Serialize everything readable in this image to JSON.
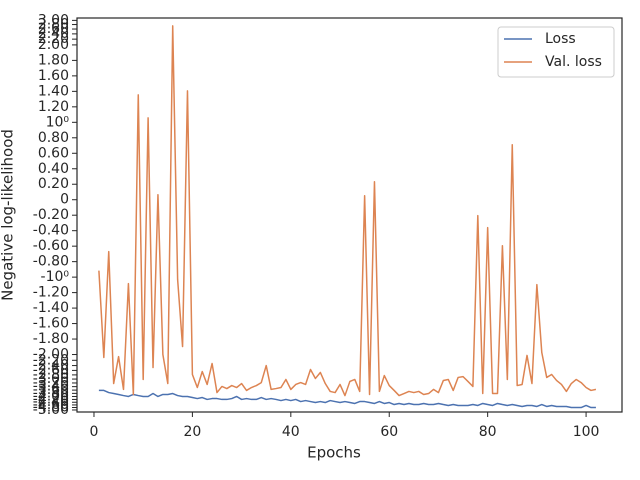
{
  "chart_data": {
    "type": "line",
    "xlabel": "Epochs",
    "ylabel": "Negative log-likelihood",
    "yscale": "symlog",
    "linthresh": 2,
    "linscale": 1,
    "base": 10,
    "xlim": [
      -3.45,
      107.3
    ],
    "ylim": [
      -5.17,
      3.12
    ],
    "xticks": [
      0,
      20,
      40,
      60,
      80,
      100
    ],
    "yticks": [
      {
        "value": 3,
        "label": "3.00"
      },
      {
        "value": 2.8,
        "label": "2.80"
      },
      {
        "value": 2.6,
        "label": "2.60"
      },
      {
        "value": 2.4,
        "label": "2.40"
      },
      {
        "value": 2.2,
        "label": "2.20"
      },
      {
        "value": 2,
        "label": "2.00"
      },
      {
        "value": 1.8,
        "label": "1.80"
      },
      {
        "value": 1.6,
        "label": "1.60"
      },
      {
        "value": 1.4,
        "label": "1.40"
      },
      {
        "value": 1.2,
        "label": "1.20"
      },
      {
        "value": 1,
        "label": "10⁰"
      },
      {
        "value": 0.8,
        "label": "0.80"
      },
      {
        "value": 0.6,
        "label": "0.60"
      },
      {
        "value": 0.4,
        "label": "0.40"
      },
      {
        "value": 0.2,
        "label": "0.20"
      },
      0,
      {
        "value": -0.2,
        "label": "-0.20"
      },
      {
        "value": -0.4,
        "label": "-0.40"
      },
      {
        "value": -0.6,
        "label": "-0.60"
      },
      {
        "value": -0.8,
        "label": "-0.80"
      },
      {
        "value": -1,
        "label": "-10⁰"
      },
      {
        "value": -1.2,
        "label": "-1.20"
      },
      {
        "value": -1.4,
        "label": "-1.40"
      },
      {
        "value": -1.6,
        "label": "-1.60"
      },
      {
        "value": -1.8,
        "label": "-1.80"
      },
      {
        "value": -2,
        "label": "-2.00"
      },
      {
        "value": -2.2,
        "label": "-2.20"
      },
      {
        "value": -2.4,
        "label": "-2.40"
      },
      {
        "value": -2.6,
        "label": "-2.60"
      },
      {
        "value": -2.8,
        "label": "-2.80"
      },
      {
        "value": -3,
        "label": "-3.00"
      },
      {
        "value": -3.2,
        "label": "-3.20"
      },
      {
        "value": -3.4,
        "label": "-3.40"
      },
      {
        "value": -3.6,
        "label": "-3.60"
      },
      {
        "value": -3.8,
        "label": "-3.80"
      },
      {
        "value": -4,
        "label": "-4.00"
      },
      {
        "value": -4.2,
        "label": "-4.20"
      },
      {
        "value": -4.4,
        "label": "-4.40"
      },
      {
        "value": -4.6,
        "label": "-4.60"
      },
      {
        "value": -4.8,
        "label": "-4.80"
      },
      {
        "value": -5,
        "label": "-5.00"
      }
    ],
    "legend": "upper right",
    "x": [
      1,
      2,
      3,
      4,
      5,
      6,
      7,
      8,
      9,
      10,
      11,
      12,
      13,
      14,
      15,
      16,
      17,
      18,
      19,
      20,
      21,
      22,
      23,
      24,
      25,
      26,
      27,
      28,
      29,
      30,
      31,
      32,
      33,
      34,
      35,
      36,
      37,
      38,
      39,
      40,
      41,
      42,
      43,
      44,
      45,
      46,
      47,
      48,
      49,
      50,
      51,
      52,
      53,
      54,
      55,
      56,
      57,
      58,
      59,
      60,
      61,
      62,
      63,
      64,
      65,
      66,
      67,
      68,
      69,
      70,
      71,
      72,
      73,
      74,
      75,
      76,
      77,
      78,
      79,
      80,
      81,
      82,
      83,
      84,
      85,
      86,
      87,
      88,
      89,
      90,
      91,
      92,
      93,
      94,
      95,
      96,
      97,
      98,
      99,
      100,
      101,
      102
    ],
    "series": [
      {
        "name": "Loss",
        "color": "#4c72b0",
        "values": [
          -3.62,
          -3.62,
          -3.75,
          -3.81,
          -3.87,
          -3.94,
          -4.0,
          -3.87,
          -3.94,
          -4.0,
          -4.0,
          -3.81,
          -4.0,
          -3.87,
          -3.87,
          -3.81,
          -3.94,
          -4.0,
          -4.0,
          -4.07,
          -4.14,
          -4.07,
          -4.2,
          -4.14,
          -4.14,
          -4.2,
          -4.2,
          -4.14,
          -4.0,
          -4.2,
          -4.14,
          -4.2,
          -4.2,
          -4.07,
          -4.2,
          -4.14,
          -4.2,
          -4.28,
          -4.2,
          -4.28,
          -4.2,
          -4.35,
          -4.28,
          -4.35,
          -4.42,
          -4.35,
          -4.42,
          -4.28,
          -4.35,
          -4.42,
          -4.35,
          -4.42,
          -4.49,
          -4.35,
          -4.35,
          -4.42,
          -4.49,
          -4.35,
          -4.49,
          -4.42,
          -4.57,
          -4.49,
          -4.57,
          -4.49,
          -4.57,
          -4.57,
          -4.49,
          -4.57,
          -4.57,
          -4.49,
          -4.57,
          -4.64,
          -4.57,
          -4.64,
          -4.64,
          -4.64,
          -4.57,
          -4.64,
          -4.49,
          -4.57,
          -4.64,
          -4.49,
          -4.57,
          -4.64,
          -4.57,
          -4.64,
          -4.72,
          -4.64,
          -4.64,
          -4.72,
          -4.57,
          -4.72,
          -4.64,
          -4.72,
          -4.72,
          -4.72,
          -4.8,
          -4.8,
          -4.8,
          -4.64,
          -4.8,
          -4.8
        ]
      },
      {
        "name": "Val. loss",
        "color": "#dd8452",
        "values": [
          -0.916,
          -2.1,
          -0.671,
          -3.23,
          -2.07,
          -3.56,
          -1.084,
          -3.87,
          1.355,
          -3.02,
          1.058,
          -2.48,
          0.065,
          -2.0,
          -3.23,
          2.74,
          -1.032,
          -1.897,
          1.406,
          -2.78,
          -3.45,
          -2.65,
          -3.28,
          -2.32,
          -3.75,
          -3.39,
          -3.51,
          -3.34,
          -3.45,
          -3.23,
          -3.62,
          -3.45,
          -3.34,
          -3.18,
          -2.4,
          -3.56,
          -3.51,
          -3.45,
          -3.02,
          -3.56,
          -3.28,
          -3.18,
          -3.28,
          -2.56,
          -2.97,
          -2.69,
          -3.23,
          -3.68,
          -3.75,
          -3.28,
          -3.94,
          -3.12,
          -3.02,
          -3.68,
          0.052,
          -3.87,
          0.232,
          -3.68,
          -2.83,
          -3.34,
          -3.62,
          -3.94,
          -3.81,
          -3.68,
          -3.75,
          -3.68,
          -3.87,
          -3.81,
          -3.56,
          -3.75,
          -3.07,
          -3.02,
          -3.62,
          -2.92,
          -2.88,
          -3.12,
          -3.39,
          -0.206,
          -3.81,
          -0.361,
          -3.81,
          -3.81,
          -0.594,
          -3.02,
          0.71,
          -3.34,
          -3.28,
          -2.03,
          -3.23,
          -1.097,
          -1.974,
          -2.92,
          -2.78,
          -3.07,
          -3.28,
          -3.68,
          -3.23,
          -3.02,
          -3.18,
          -3.45,
          -3.62,
          -3.56
        ]
      }
    ]
  }
}
